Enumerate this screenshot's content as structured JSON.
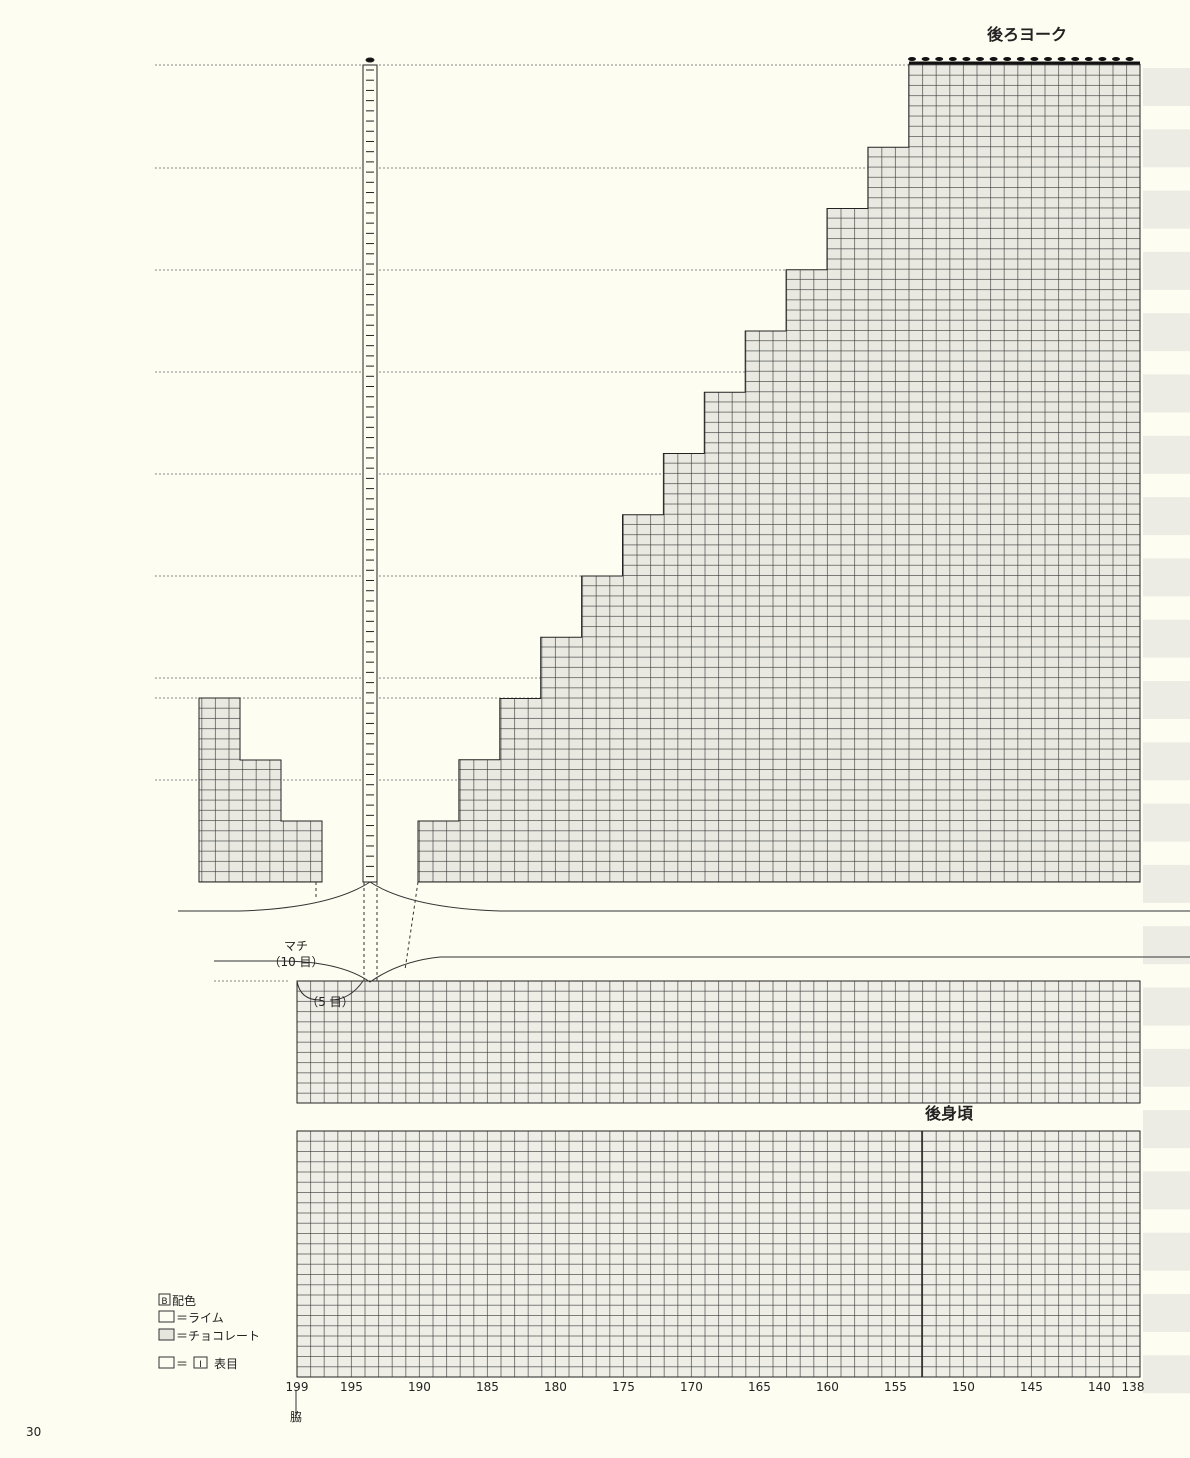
{
  "header": {
    "yoke_title": "後ろヨーク",
    "body_title": "後身頃"
  },
  "gusset": {
    "label": "マチ",
    "count": "（10 目）",
    "half": "（5 目）"
  },
  "legend": {
    "color_box": "B",
    "color_title": "配色",
    "lime": "＝ライム",
    "chocolate": "＝チョコレート",
    "knit_eq": "＝",
    "knit_symbol": "I",
    "knit": "表目"
  },
  "stitch_numbers": [
    199,
    195,
    190,
    185,
    180,
    175,
    170,
    165,
    160,
    155,
    150,
    145,
    140,
    138
  ],
  "side_label": "脇",
  "page_number": "30"
}
